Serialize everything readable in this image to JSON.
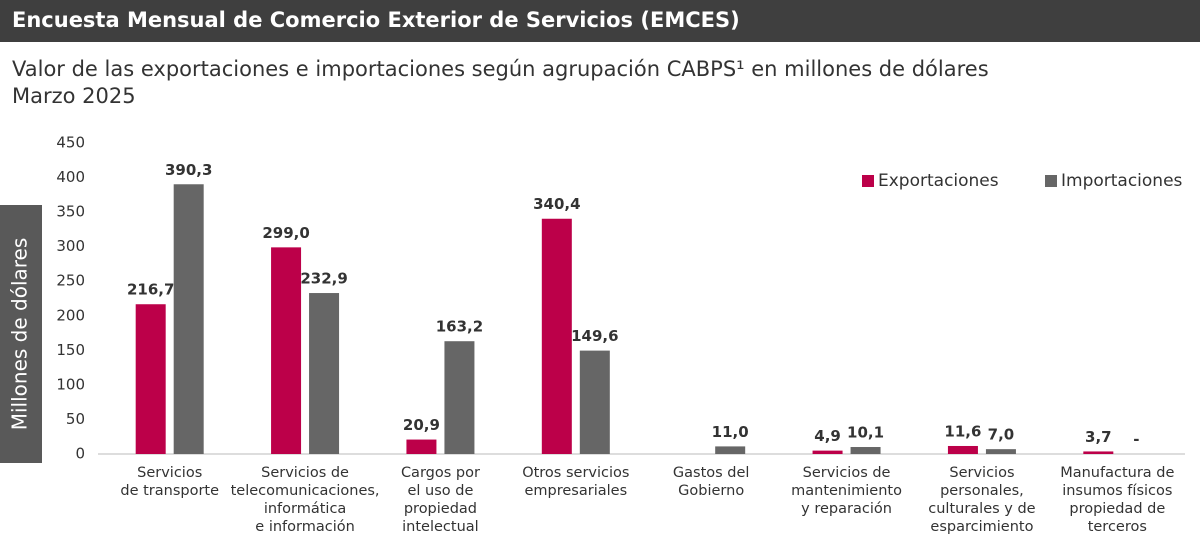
{
  "chart_data": {
    "type": "bar",
    "header": "Encuesta Mensual de Comercio Exterior de Servicios (EMCES)",
    "title": "Valor de las exportaciones e importaciones según agrupación CABPS¹ en millones de dólares",
    "subtitle": "Marzo 2025",
    "y_label": "Millones de dólares",
    "categories": [
      [
        "Servicios",
        "de transporte"
      ],
      [
        "Servicios de",
        "telecomunicaciones,",
        "informática",
        "e información"
      ],
      [
        "Cargos por",
        "el uso de",
        "propiedad",
        "intelectual"
      ],
      [
        "Otros servicios",
        "empresariales"
      ],
      [
        "Gastos del",
        "Gobierno"
      ],
      [
        "Servicios de",
        "mantenimiento",
        "y reparación"
      ],
      [
        "Servicios",
        "personales,",
        "culturales y de",
        "esparcimiento"
      ],
      [
        "Manufactura de",
        "insumos físicos",
        "propiedad de",
        "terceros"
      ]
    ],
    "series": [
      {
        "name": "Exportaciones",
        "color": "#bc0049",
        "values": [
          216.7,
          299.0,
          20.9,
          340.4,
          null,
          4.9,
          11.6,
          3.7
        ],
        "value_labels": [
          "216,7",
          "299,0",
          "20,9",
          "340,4",
          null,
          "4,9",
          "11,6",
          "3,7"
        ]
      },
      {
        "name": "Importaciones",
        "color": "#666666",
        "values": [
          390.3,
          232.9,
          163.2,
          149.6,
          11.0,
          10.1,
          7.0,
          null
        ],
        "value_labels": [
          "390,3",
          "232,9",
          "163,2",
          "149,6",
          "11,0",
          "10,1",
          "7,0",
          "-"
        ]
      }
    ],
    "ylim": [
      0,
      450
    ],
    "yticks": [
      0,
      50,
      100,
      150,
      200,
      250,
      300,
      350,
      400,
      450
    ],
    "grid": false,
    "legend": "upper right"
  }
}
